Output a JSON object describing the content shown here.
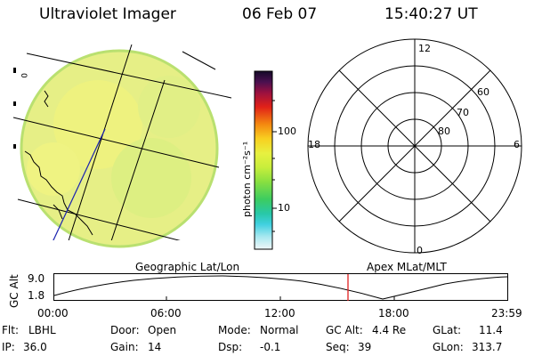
{
  "header": {
    "instrument": "Ultraviolet Imager",
    "date": "06 Feb 07",
    "time": "15:40:27 UT"
  },
  "colorbar": {
    "unit_label": "photon cm⁻²s⁻¹",
    "ticks": [
      "100",
      "10"
    ]
  },
  "polar": {
    "mlt_labels": [
      "12",
      "18",
      "6",
      "0"
    ],
    "lat_labels": [
      "60",
      "70",
      "80"
    ]
  },
  "map_labels": {
    "left_caption": "Geographic Lat/Lon",
    "right_caption": "Apex MLat/MLT"
  },
  "altitude_plot": {
    "ylabel": "GC Alt",
    "yticks": [
      "9.0",
      "1.8"
    ],
    "xticks": [
      "00:00",
      "06:00",
      "12:00",
      "18:00",
      "23:59"
    ]
  },
  "status": {
    "row1": [
      {
        "label": "Flt:",
        "value": "LBHL"
      },
      {
        "label": "Door:",
        "value": "Open"
      },
      {
        "label": "Mode:",
        "value": "Normal"
      },
      {
        "label": "GC Alt:",
        "value": "4.4 Re"
      },
      {
        "label": "GLat:",
        "value": "11.4"
      }
    ],
    "row2": [
      {
        "label": "IP:",
        "value": "36.0"
      },
      {
        "label": "Gain:",
        "value": "14"
      },
      {
        "label": "Dsp:",
        "value": "-0.1"
      },
      {
        "label": "Seq:",
        "value": "39"
      },
      {
        "label": "GLon:",
        "value": "313.7"
      }
    ]
  },
  "colors": {
    "earth_fill": "#e8f08a",
    "marker": "#e02020"
  }
}
